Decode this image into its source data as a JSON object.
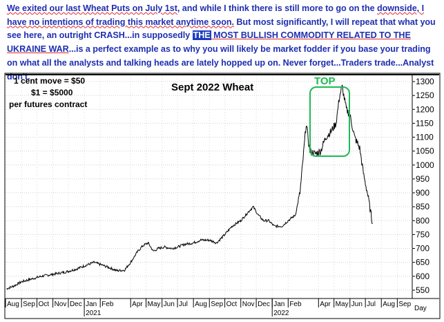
{
  "commentary": {
    "p1": "We exited our last Wheat Puts on July 1st",
    "p2": ", and while I think there is still more to go on the ",
    "p3": "downside, I have no intentions of trading this market anytime soon.",
    "p4": " But most significantly, I will repeat that what you see here, an outright CRASH...in supposedly ",
    "p5": "THE",
    "p6": " MOST BULLISH COMMODITY RELATED TO THE UKRAINE WAR",
    "p7": "...is a perfect example as to why you will likely be market fodder if you base your trading on what all the analysts and talking heads are lately hopped up on. Never forget...Traders trade...Analyst don't."
  },
  "notes": {
    "line1": "1 cent move = $50",
    "line2": "$1 = $5000",
    "line3": "per futures contract"
  },
  "colors": {
    "text_blue": "#1f2fb0",
    "highlight_blue": "#1d3fc4",
    "top_box": "#1db954",
    "price_line": "#000000"
  },
  "chart_data": {
    "type": "line",
    "title": "Sept 2022 Wheat",
    "annotation": "TOP",
    "ylim": [
      520,
      1320
    ],
    "y_ticks": [
      550,
      600,
      650,
      700,
      750,
      800,
      850,
      900,
      950,
      1000,
      1050,
      1100,
      1150,
      1200,
      1250,
      1300
    ],
    "x_unit_label": "Day",
    "x_month_labels": [
      "Aug",
      "Sep",
      "Oct",
      "Nov",
      "Dec",
      "Jan",
      "Feb",
      "Apr",
      "May",
      "Jun",
      "Jul",
      "Aug",
      "Sep",
      "Oct",
      "Nov",
      "Dec",
      "Jan",
      "Feb",
      "Apr",
      "May",
      "Jun",
      "Jul",
      "Aug",
      "Sep"
    ],
    "x_year_labels": [
      "2021",
      "2022"
    ],
    "x_range": [
      "2020-08-01",
      "2022-09-30"
    ],
    "series": [
      {
        "points": [
          [
            "2020-08-03",
            555
          ],
          [
            "2020-08-17",
            565
          ],
          [
            "2020-09-01",
            580
          ],
          [
            "2020-09-20",
            590
          ],
          [
            "2020-10-10",
            600
          ],
          [
            "2020-10-25",
            605
          ],
          [
            "2020-11-10",
            610
          ],
          [
            "2020-11-25",
            615
          ],
          [
            "2020-12-15",
            625
          ],
          [
            "2021-01-05",
            640
          ],
          [
            "2021-01-20",
            650
          ],
          [
            "2021-02-05",
            640
          ],
          [
            "2021-02-20",
            630
          ],
          [
            "2021-03-05",
            620
          ],
          [
            "2021-03-20",
            622
          ],
          [
            "2021-04-01",
            650
          ],
          [
            "2021-04-15",
            690
          ],
          [
            "2021-04-25",
            710
          ],
          [
            "2021-05-05",
            720
          ],
          [
            "2021-05-15",
            690
          ],
          [
            "2021-05-25",
            700
          ],
          [
            "2021-06-05",
            705
          ],
          [
            "2021-06-20",
            700
          ],
          [
            "2021-07-01",
            705
          ],
          [
            "2021-07-15",
            715
          ],
          [
            "2021-08-01",
            720
          ],
          [
            "2021-08-15",
            730
          ],
          [
            "2021-09-01",
            730
          ],
          [
            "2021-09-15",
            720
          ],
          [
            "2021-10-01",
            750
          ],
          [
            "2021-10-15",
            780
          ],
          [
            "2021-11-01",
            800
          ],
          [
            "2021-11-15",
            830
          ],
          [
            "2021-11-25",
            850
          ],
          [
            "2021-12-05",
            820
          ],
          [
            "2021-12-15",
            800
          ],
          [
            "2021-12-25",
            800
          ],
          [
            "2022-01-05",
            780
          ],
          [
            "2022-01-20",
            780
          ],
          [
            "2022-02-01",
            800
          ],
          [
            "2022-02-15",
            820
          ],
          [
            "2022-02-24",
            900
          ],
          [
            "2022-03-01",
            1000
          ],
          [
            "2022-03-08",
            1150
          ],
          [
            "2022-03-15",
            1050
          ],
          [
            "2022-03-25",
            1040
          ],
          [
            "2022-04-05",
            1050
          ],
          [
            "2022-04-15",
            1100
          ],
          [
            "2022-04-25",
            1120
          ],
          [
            "2022-05-05",
            1150
          ],
          [
            "2022-05-12",
            1250
          ],
          [
            "2022-05-17",
            1280
          ],
          [
            "2022-05-25",
            1200
          ],
          [
            "2022-06-01",
            1180
          ],
          [
            "2022-06-10",
            1100
          ],
          [
            "2022-06-20",
            1060
          ],
          [
            "2022-06-28",
            960
          ],
          [
            "2022-07-05",
            900
          ],
          [
            "2022-07-12",
            820
          ],
          [
            "2022-07-15",
            790
          ]
        ]
      }
    ]
  }
}
